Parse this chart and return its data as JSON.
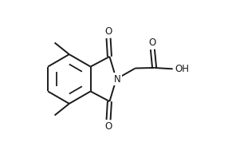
{
  "background": "#ffffff",
  "line_color": "#1a1a1a",
  "line_width": 1.4,
  "font_size": 8.5,
  "figsize": [
    2.86,
    1.98
  ],
  "dpi": 100,
  "xlim": [
    0,
    10
  ],
  "ylim": [
    0,
    7
  ]
}
